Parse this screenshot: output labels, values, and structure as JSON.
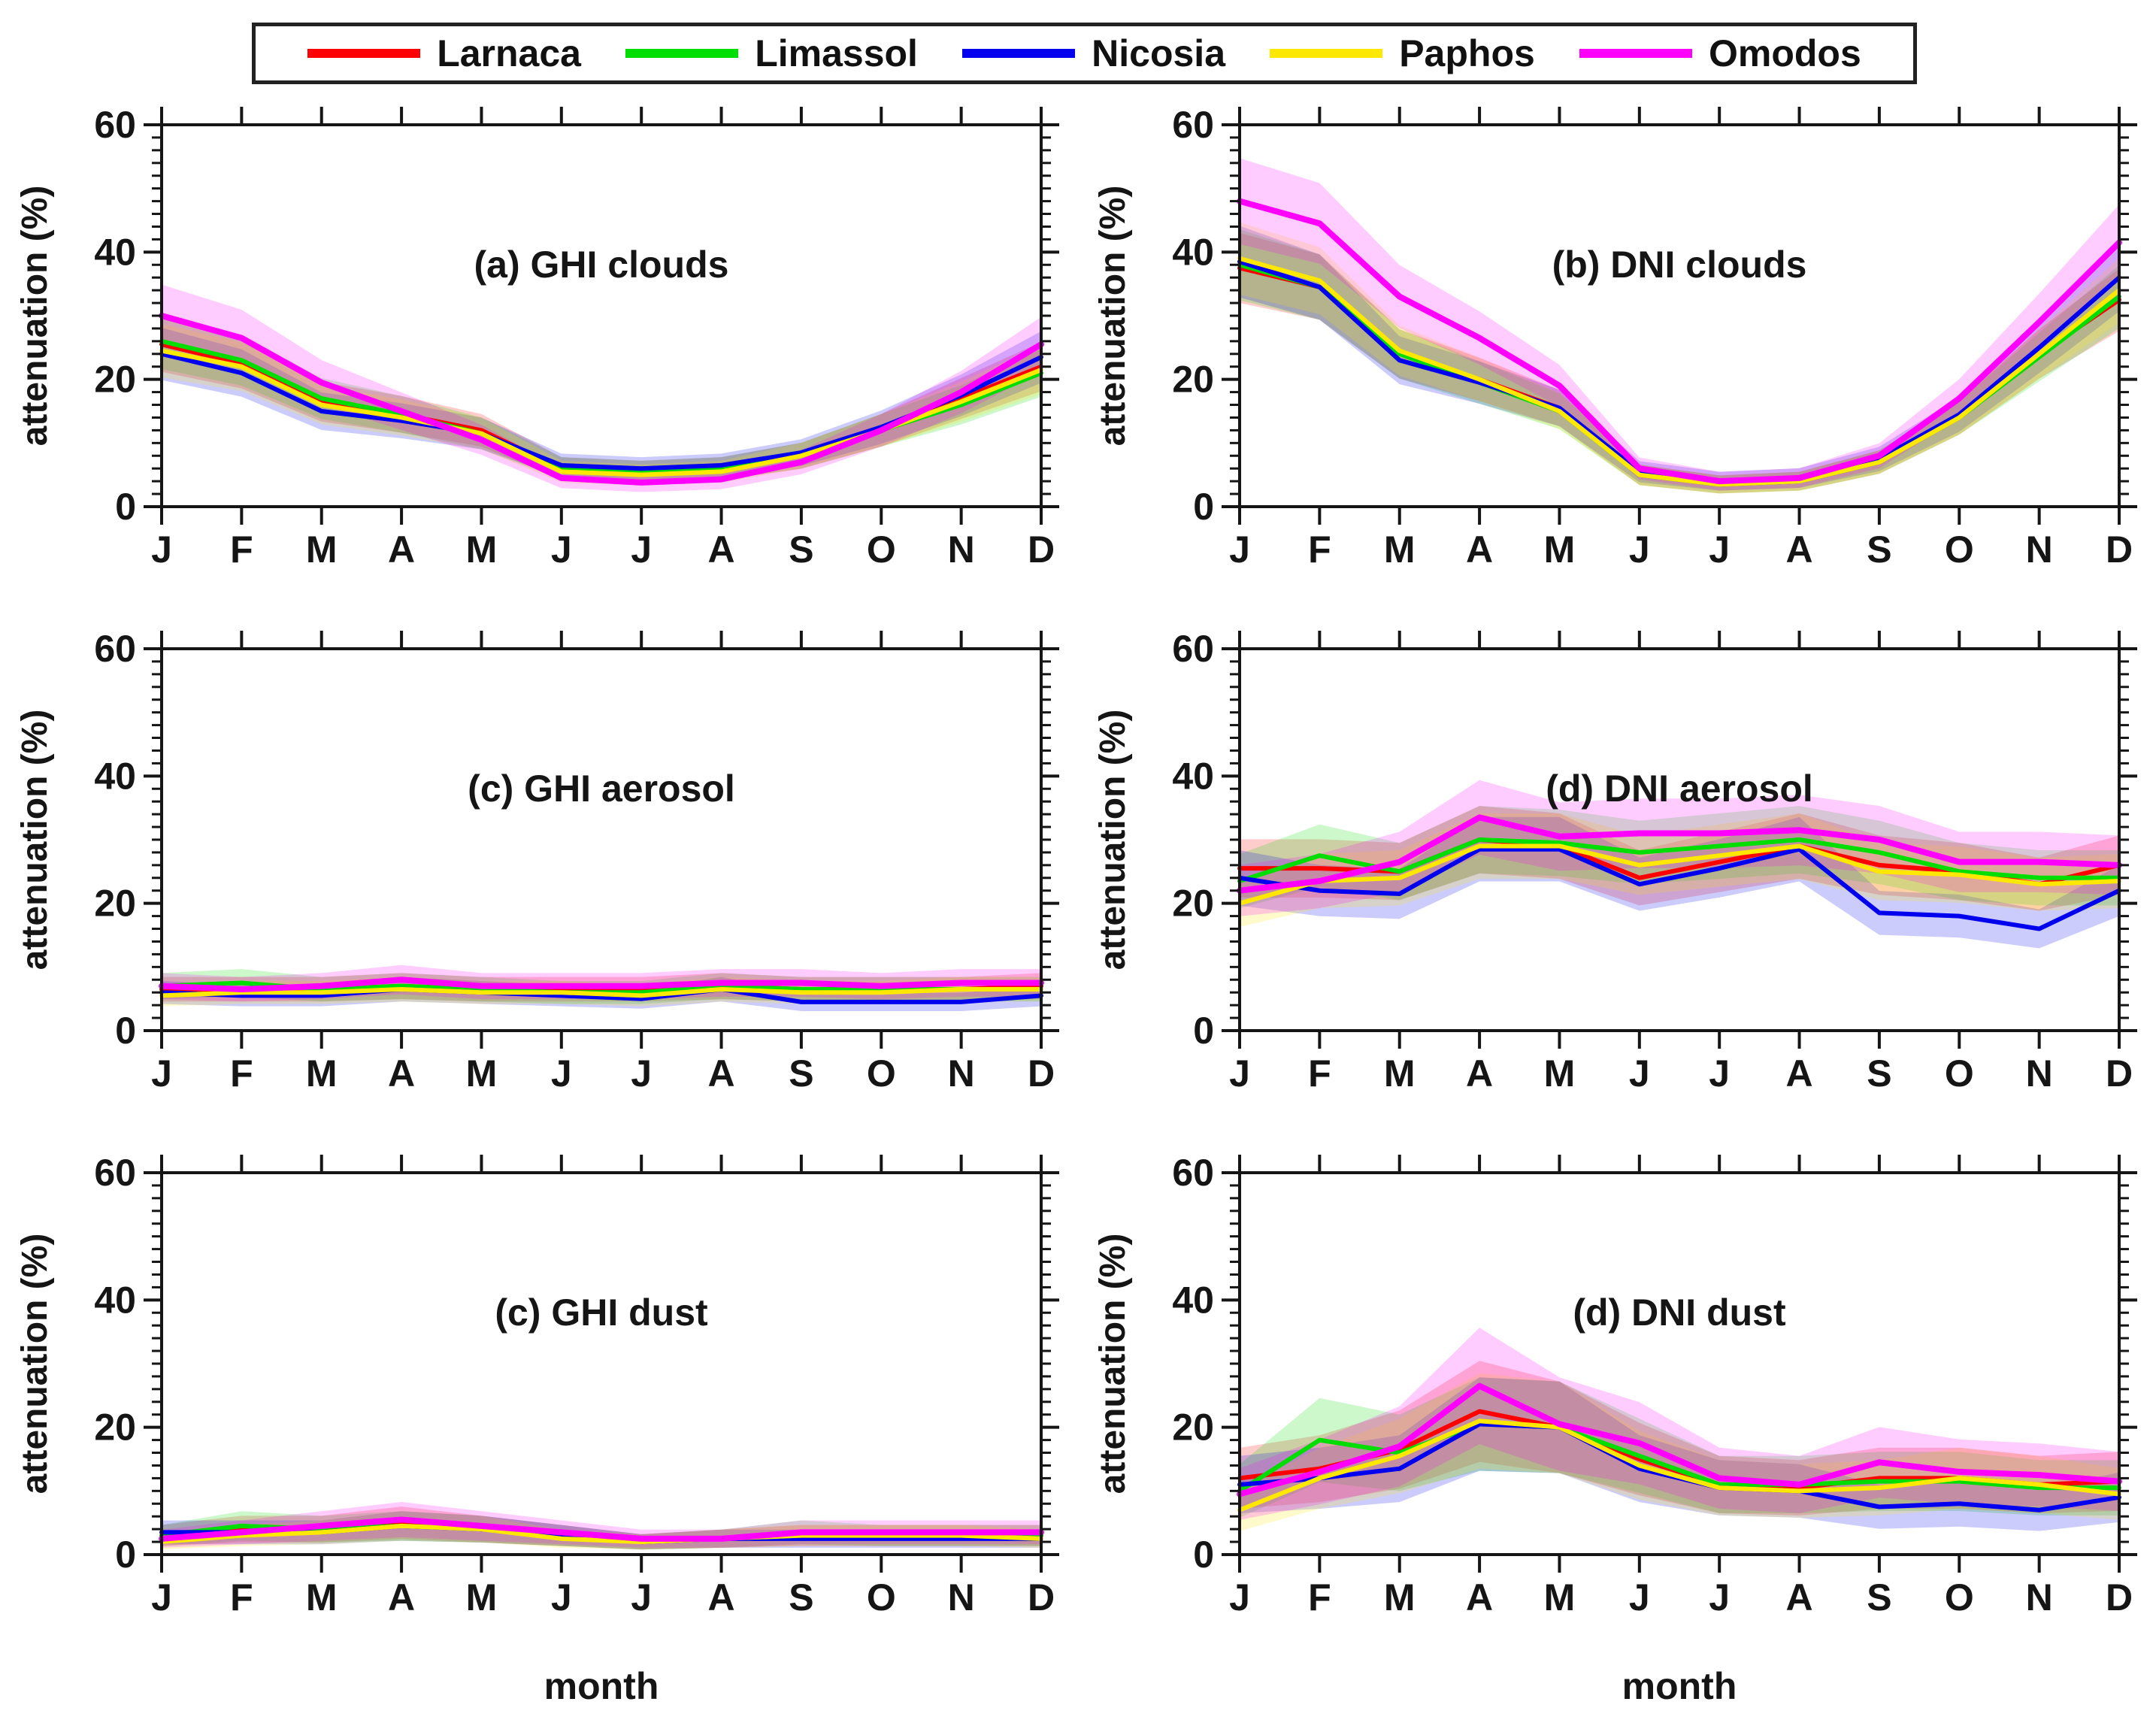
{
  "legend": {
    "items": [
      {
        "label": "Larnaca",
        "color": "#ff0000"
      },
      {
        "label": "Limassol",
        "color": "#00dd00"
      },
      {
        "label": "Nicosia",
        "color": "#0000ee"
      },
      {
        "label": "Paphos",
        "color": "#ffe800"
      },
      {
        "label": "Omodos",
        "color": "#ff00ff"
      }
    ]
  },
  "axes": {
    "months": [
      "J",
      "F",
      "M",
      "A",
      "M",
      "J",
      "J",
      "A",
      "S",
      "O",
      "N",
      "D"
    ],
    "yticks": [
      0,
      20,
      40,
      60
    ],
    "ylim": [
      0,
      60
    ],
    "y_minor_step": 2,
    "ylabel": "attenuation (%)",
    "xlabel": "month"
  },
  "chart_data": [
    {
      "id": "ghi-clouds",
      "type": "line",
      "title": "(a) GHI clouds",
      "ylabel": "attenuation (%)",
      "xlabel": "",
      "ylim": [
        0,
        60
      ],
      "yticks": [
        0,
        20,
        40,
        60
      ],
      "categories": [
        "J",
        "F",
        "M",
        "A",
        "M",
        "J",
        "J",
        "A",
        "S",
        "O",
        "N",
        "D"
      ],
      "band_rule": {
        "frac": 0.13,
        "base": 1.0
      },
      "series": [
        {
          "name": "Larnaca",
          "color": "#ff0000",
          "values": [
            25.5,
            22.5,
            16.5,
            14.5,
            12,
            6,
            5.5,
            6,
            8,
            12,
            17,
            22
          ]
        },
        {
          "name": "Limassol",
          "color": "#00dd00",
          "values": [
            26,
            23,
            17,
            14.5,
            11.5,
            6,
            5.5,
            6,
            8,
            12,
            16,
            21
          ]
        },
        {
          "name": "Nicosia",
          "color": "#0000ee",
          "values": [
            24,
            21,
            15,
            13.5,
            11.5,
            6.5,
            6,
            6.5,
            8.5,
            12.5,
            17.5,
            23.5
          ]
        },
        {
          "name": "Paphos",
          "color": "#ffe800",
          "values": [
            24.5,
            22,
            16,
            14,
            11.5,
            5.5,
            5,
            5.5,
            8,
            12,
            16.5,
            21.5
          ]
        },
        {
          "name": "Omodos",
          "color": "#ff00ff",
          "values": [
            30,
            26.5,
            19.5,
            15,
            10.5,
            4.5,
            3.8,
            4.3,
            7,
            12,
            18,
            25.5
          ]
        }
      ]
    },
    {
      "id": "dni-clouds",
      "type": "line",
      "title": "(b) DNI clouds",
      "ylabel": "attenuation (%)",
      "xlabel": "",
      "ylim": [
        0,
        60
      ],
      "yticks": [
        0,
        20,
        40,
        60
      ],
      "categories": [
        "J",
        "F",
        "M",
        "A",
        "M",
        "J",
        "J",
        "A",
        "S",
        "O",
        "N",
        "D"
      ],
      "band_rule": {
        "frac": 0.12,
        "base": 1.0
      },
      "series": [
        {
          "name": "Larnaca",
          "color": "#ff0000",
          "values": [
            37.5,
            34.5,
            24,
            20,
            15.5,
            5,
            3.5,
            4,
            7,
            14,
            24,
            32.5
          ]
        },
        {
          "name": "Limassol",
          "color": "#00dd00",
          "values": [
            38,
            34.5,
            24,
            19.5,
            15,
            5,
            3.5,
            4,
            7,
            14,
            23.5,
            33
          ]
        },
        {
          "name": "Nicosia",
          "color": "#0000ee",
          "values": [
            38.5,
            34.5,
            23,
            19.5,
            15.5,
            5.5,
            4,
            4.5,
            7.5,
            14.5,
            25,
            36
          ]
        },
        {
          "name": "Paphos",
          "color": "#ffe800",
          "values": [
            39,
            35.5,
            24.5,
            20,
            15,
            5,
            3.5,
            4,
            7,
            14,
            24,
            34
          ]
        },
        {
          "name": "Omodos",
          "color": "#ff00ff",
          "values": [
            48,
            44.5,
            33,
            26.5,
            19,
            6,
            4,
            4.5,
            8,
            17,
            29,
            41.5
          ]
        }
      ]
    },
    {
      "id": "ghi-aerosol",
      "type": "line",
      "title": "(c) GHI aerosol",
      "ylabel": "attenuation (%)",
      "xlabel": "",
      "ylim": [
        0,
        60
      ],
      "yticks": [
        0,
        20,
        40,
        60
      ],
      "categories": [
        "J",
        "F",
        "M",
        "A",
        "M",
        "J",
        "J",
        "A",
        "S",
        "O",
        "N",
        "D"
      ],
      "band_rule": {
        "frac": 0.25,
        "base": 0.3
      },
      "series": [
        {
          "name": "Larnaca",
          "color": "#ff0000",
          "values": [
            6.5,
            6.5,
            6.5,
            7,
            6.5,
            6.5,
            6.5,
            7,
            6.5,
            6.5,
            6.5,
            7
          ]
        },
        {
          "name": "Limassol",
          "color": "#00dd00",
          "values": [
            7,
            7.5,
            6.5,
            7,
            6.5,
            6,
            6,
            7,
            6.5,
            6.5,
            6.5,
            6.5
          ]
        },
        {
          "name": "Nicosia",
          "color": "#0000ee",
          "values": [
            6,
            5.5,
            5.5,
            6.5,
            6,
            5.5,
            5,
            6.5,
            4.5,
            4.5,
            4.5,
            5.5
          ]
        },
        {
          "name": "Paphos",
          "color": "#ffe800",
          "values": [
            5.5,
            6,
            6,
            6.5,
            6,
            6,
            5.5,
            6.5,
            6,
            6,
            6.5,
            6.5
          ]
        },
        {
          "name": "Omodos",
          "color": "#ff00ff",
          "values": [
            7,
            6.5,
            7,
            8,
            7,
            7,
            7,
            7.5,
            7.5,
            7,
            7.5,
            7.5
          ]
        }
      ]
    },
    {
      "id": "dni-aerosol",
      "type": "line",
      "title": "(d) DNI aerosol",
      "ylabel": "attenuation (%)",
      "xlabel": "",
      "ylim": [
        0,
        60
      ],
      "yticks": [
        0,
        20,
        40,
        60
      ],
      "categories": [
        "J",
        "F",
        "M",
        "A",
        "M",
        "J",
        "J",
        "A",
        "S",
        "O",
        "N",
        "D"
      ],
      "band_rule": {
        "frac": 0.16,
        "base": 0.5
      },
      "series": [
        {
          "name": "Larnaca",
          "color": "#ff0000",
          "values": [
            25.5,
            25.5,
            25,
            30,
            29,
            24,
            26.5,
            29,
            26,
            25,
            23,
            26
          ]
        },
        {
          "name": "Limassol",
          "color": "#00dd00",
          "values": [
            23.5,
            27.5,
            25,
            30,
            29.5,
            28,
            29,
            30,
            28,
            25,
            24,
            24
          ]
        },
        {
          "name": "Nicosia",
          "color": "#0000ee",
          "values": [
            24,
            22,
            21.5,
            28.5,
            28.5,
            23,
            25.5,
            28.5,
            18.5,
            18,
            16,
            22
          ]
        },
        {
          "name": "Paphos",
          "color": "#ffe800",
          "values": [
            20,
            23.5,
            24,
            29,
            29,
            26,
            27.5,
            29,
            25,
            24.5,
            23,
            23.5
          ]
        },
        {
          "name": "Omodos",
          "color": "#ff00ff",
          "values": [
            22,
            23.5,
            26.5,
            33.5,
            30.5,
            31,
            31,
            31.5,
            30,
            26.5,
            26.5,
            26
          ]
        }
      ]
    },
    {
      "id": "ghi-dust",
      "type": "line",
      "title": "(c) GHI dust",
      "ylabel": "attenuation (%)",
      "xlabel": "month",
      "ylim": [
        0,
        60
      ],
      "yticks": [
        0,
        20,
        40,
        60
      ],
      "categories": [
        "J",
        "F",
        "M",
        "A",
        "M",
        "J",
        "J",
        "A",
        "S",
        "O",
        "N",
        "D"
      ],
      "band_rule": {
        "frac": 0.45,
        "base": 0.3
      },
      "series": [
        {
          "name": "Larnaca",
          "color": "#ff0000",
          "values": [
            3,
            4,
            4,
            5,
            4,
            3,
            2,
            2.5,
            3,
            3,
            3,
            3
          ]
        },
        {
          "name": "Limassol",
          "color": "#00dd00",
          "values": [
            3,
            4.5,
            4,
            4.5,
            4,
            3,
            2,
            2.5,
            3.5,
            3,
            3,
            3
          ]
        },
        {
          "name": "Nicosia",
          "color": "#0000ee",
          "values": [
            3.5,
            3.5,
            3.5,
            4.5,
            4,
            3,
            2,
            2.5,
            2.5,
            2.5,
            2.5,
            2.5
          ]
        },
        {
          "name": "Paphos",
          "color": "#ffe800",
          "values": [
            2,
            3,
            3.5,
            4.5,
            4,
            2.5,
            2,
            2.5,
            3,
            3,
            3,
            2.5
          ]
        },
        {
          "name": "Omodos",
          "color": "#ff00ff",
          "values": [
            2.5,
            3.5,
            4.5,
            5.5,
            4.5,
            3.5,
            2.5,
            2.5,
            3.5,
            3.5,
            3.5,
            3.5
          ]
        }
      ]
    },
    {
      "id": "dni-dust",
      "type": "line",
      "title": "(d) DNI dust",
      "ylabel": "attenuation (%)",
      "xlabel": "month",
      "ylim": [
        0,
        60
      ],
      "yticks": [
        0,
        20,
        40,
        60
      ],
      "categories": [
        "J",
        "F",
        "M",
        "A",
        "M",
        "J",
        "J",
        "A",
        "S",
        "O",
        "N",
        "D"
      ],
      "band_rule": {
        "frac": 0.3,
        "base": 1.2
      },
      "series": [
        {
          "name": "Larnaca",
          "color": "#ff0000",
          "values": [
            12,
            13.5,
            16.5,
            22.5,
            20,
            15,
            11,
            10.5,
            12,
            12,
            11,
            11.5
          ]
        },
        {
          "name": "Limassol",
          "color": "#00dd00",
          "values": [
            10,
            18,
            16,
            20.5,
            20,
            15.5,
            11,
            11,
            11.5,
            11.5,
            10.5,
            10.5
          ]
        },
        {
          "name": "Nicosia",
          "color": "#0000ee",
          "values": [
            11,
            12,
            13.5,
            20.5,
            20,
            13.5,
            10.5,
            10,
            7.5,
            8,
            7,
            9
          ]
        },
        {
          "name": "Paphos",
          "color": "#ffe800",
          "values": [
            7,
            12,
            15.5,
            21,
            20,
            14,
            10.5,
            10,
            10.5,
            12,
            11,
            9.5
          ]
        },
        {
          "name": "Omodos",
          "color": "#ff00ff",
          "values": [
            9.5,
            13,
            17,
            26.5,
            20.5,
            17.5,
            12,
            11,
            14.5,
            13,
            12.5,
            11.5
          ]
        }
      ]
    }
  ]
}
